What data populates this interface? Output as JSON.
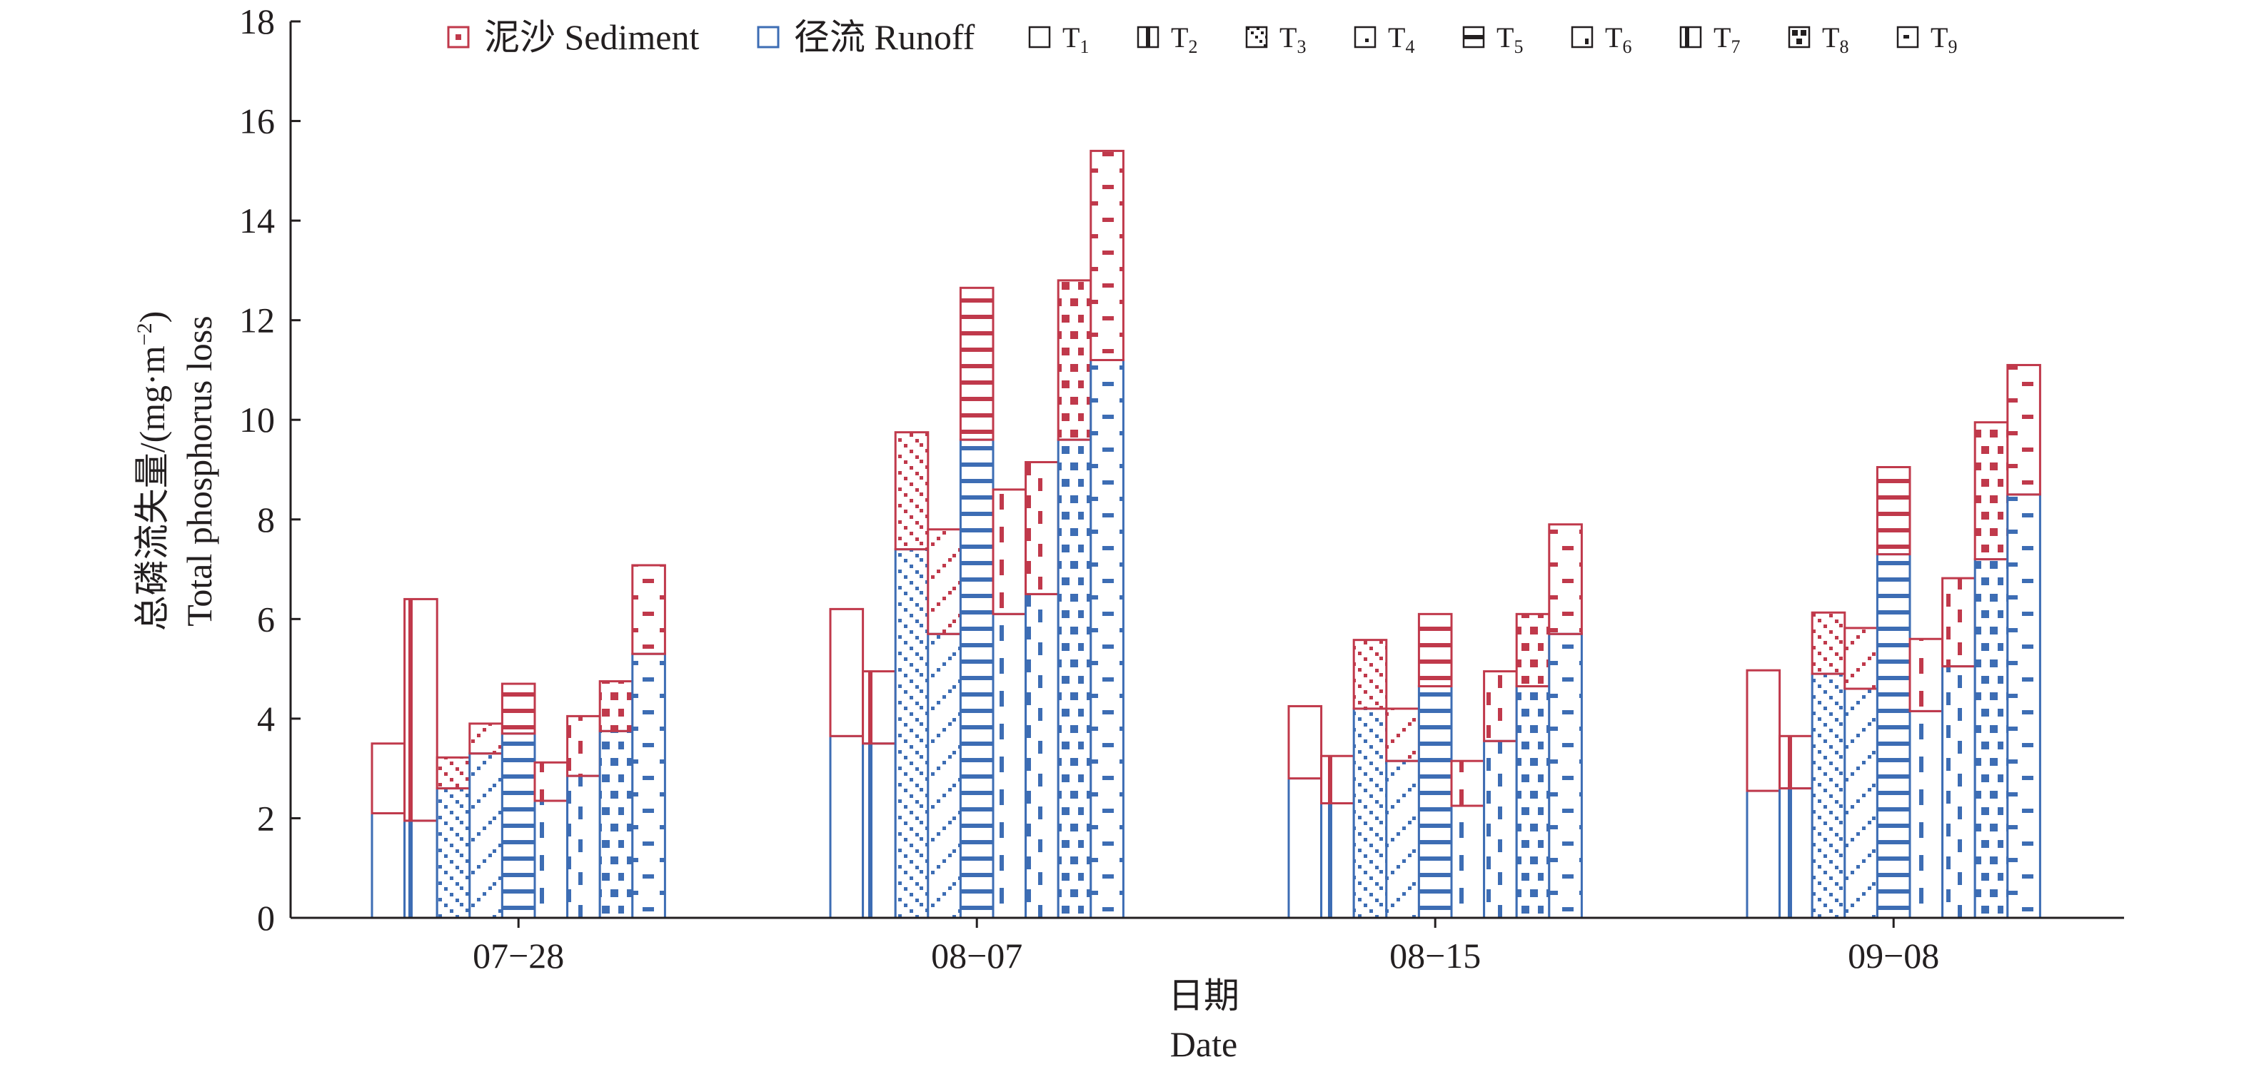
{
  "chart_data": {
    "type": "bar",
    "ylabel_zh": "总磷流失量/(mg·m",
    "ylabel_zh_sup": "−2",
    "ylabel_zh_end": ")",
    "ylabel_en": "Total phosphorus loss",
    "xlabel_zh": "日期",
    "xlabel_en": "Date",
    "ylim": [
      0,
      18
    ],
    "yticks": [
      "0",
      "2",
      "4",
      "6",
      "8",
      "10",
      "12",
      "14",
      "16",
      "18"
    ],
    "categories": [
      "07−28",
      "08−07",
      "08−15",
      "09−08"
    ],
    "components": [
      {
        "name": "泥沙 Sediment",
        "color": "#c0394b"
      },
      {
        "name": "径流 Runoff",
        "color": "#3d6db4"
      }
    ],
    "treatments": [
      {
        "name": "T",
        "sub": "1",
        "pattern": "none"
      },
      {
        "name": "T",
        "sub": "2",
        "pattern": "vlines"
      },
      {
        "name": "T",
        "sub": "3",
        "pattern": "diag"
      },
      {
        "name": "T",
        "sub": "4",
        "pattern": "diag2"
      },
      {
        "name": "T",
        "sub": "5",
        "pattern": "hlines"
      },
      {
        "name": "T",
        "sub": "6",
        "pattern": "vdash"
      },
      {
        "name": "T",
        "sub": "7",
        "pattern": "vdash2"
      },
      {
        "name": "T",
        "sub": "8",
        "pattern": "checker"
      },
      {
        "name": "T",
        "sub": "9",
        "pattern": "hdash"
      }
    ],
    "runoff": [
      [
        2.1,
        1.95,
        2.6,
        3.3,
        3.7,
        2.35,
        2.85,
        3.75,
        5.3
      ],
      [
        3.65,
        3.5,
        7.4,
        5.7,
        9.6,
        6.1,
        6.5,
        9.6,
        11.2
      ],
      [
        2.8,
        2.3,
        4.2,
        3.15,
        4.65,
        2.25,
        3.55,
        4.65,
        5.7
      ],
      [
        2.55,
        2.6,
        4.9,
        4.6,
        7.3,
        4.15,
        5.05,
        7.2,
        8.5
      ]
    ],
    "sediment": [
      [
        1.4,
        4.45,
        0.62,
        0.6,
        1.0,
        0.77,
        1.2,
        1.0,
        1.78
      ],
      [
        2.55,
        1.45,
        2.35,
        2.1,
        3.05,
        2.5,
        2.65,
        3.2,
        4.2
      ],
      [
        1.45,
        0.95,
        1.38,
        1.05,
        1.45,
        0.9,
        1.4,
        1.45,
        2.2
      ],
      [
        2.42,
        1.05,
        1.23,
        1.22,
        1.75,
        1.45,
        1.77,
        2.75,
        2.6
      ]
    ]
  }
}
